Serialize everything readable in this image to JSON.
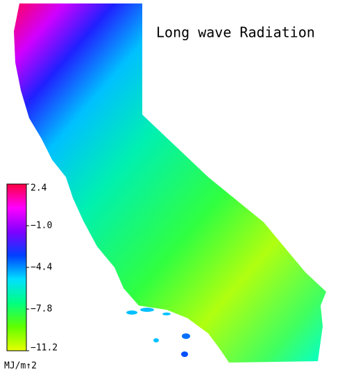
{
  "title": "Long wave Radiation",
  "colorbar": {
    "lim": [
      -11.2,
      2.4
    ],
    "ticks": [
      {
        "value": 2.4,
        "label": "2.4"
      },
      {
        "value": -1.0,
        "label": "−1.0"
      },
      {
        "value": -4.4,
        "label": "−4.4"
      },
      {
        "value": -7.8,
        "label": "−7.8"
      },
      {
        "value": -11.2,
        "label": "−11.2"
      }
    ],
    "colors": [
      "#e8ff00",
      "#60ff00",
      "#00ff80",
      "#00e0ff",
      "#0040ff",
      "#8000ff",
      "#ff00ff",
      "#ff0040"
    ],
    "unit": "MJ/m↑2"
  }
}
